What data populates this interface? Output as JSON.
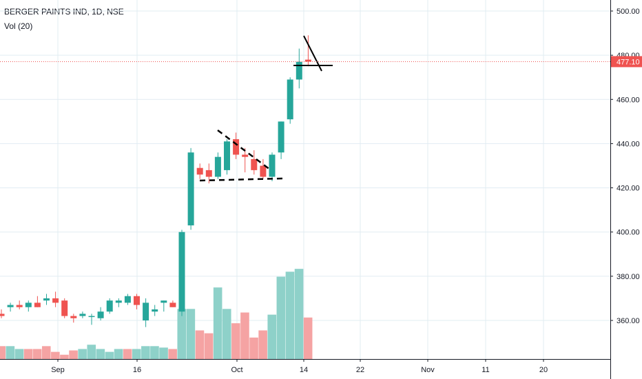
{
  "chart_data": {
    "type": "candlestick",
    "title": "BERGER PAINTS IND, 1D, NSE",
    "volume_label": "Vol (20)",
    "price_axis": {
      "ticks": [
        "500.00",
        "480.00",
        "460.00",
        "440.00",
        "420.00",
        "400.00",
        "380.00",
        "360.00"
      ],
      "ylim": [
        343,
        502
      ]
    },
    "time_axis": {
      "ticks": [
        "Sep",
        "16",
        "Oct",
        "14",
        "22",
        "Nov",
        "11",
        "20"
      ]
    },
    "last_price": {
      "label": "477.10",
      "value": 477.1
    },
    "candles": [
      {
        "o": 363,
        "h": 365,
        "l": 361,
        "c": 362
      },
      {
        "o": 366,
        "h": 368,
        "l": 364,
        "c": 367
      },
      {
        "o": 367,
        "h": 369,
        "l": 365,
        "c": 366
      },
      {
        "o": 366,
        "h": 369,
        "l": 364,
        "c": 368
      },
      {
        "o": 368,
        "h": 371,
        "l": 366,
        "c": 366
      },
      {
        "o": 369,
        "h": 372,
        "l": 367,
        "c": 370
      },
      {
        "o": 370,
        "h": 373,
        "l": 366,
        "c": 368
      },
      {
        "o": 369,
        "h": 370,
        "l": 361,
        "c": 362
      },
      {
        "o": 362,
        "h": 363,
        "l": 359,
        "c": 361
      },
      {
        "o": 362,
        "h": 364,
        "l": 361,
        "c": 363
      },
      {
        "o": 362,
        "h": 363,
        "l": 358,
        "c": 362
      },
      {
        "o": 361,
        "h": 366,
        "l": 360,
        "c": 364
      },
      {
        "o": 364,
        "h": 370,
        "l": 363,
        "c": 369
      },
      {
        "o": 368,
        "h": 370,
        "l": 366,
        "c": 369
      },
      {
        "o": 368,
        "h": 372,
        "l": 367,
        "c": 371
      },
      {
        "o": 371,
        "h": 372,
        "l": 365,
        "c": 367
      },
      {
        "o": 360,
        "h": 370,
        "l": 357,
        "c": 368
      },
      {
        "o": 364,
        "h": 367,
        "l": 362,
        "c": 365
      },
      {
        "o": 368,
        "h": 369,
        "l": 364,
        "c": 369
      },
      {
        "o": 368,
        "h": 369,
        "l": 366,
        "c": 366
      },
      {
        "o": 364,
        "h": 401,
        "l": 362,
        "c": 400
      },
      {
        "o": 403,
        "h": 438,
        "l": 401,
        "c": 436
      },
      {
        "o": 429,
        "h": 431,
        "l": 424,
        "c": 426
      },
      {
        "o": 428,
        "h": 431,
        "l": 422,
        "c": 425
      },
      {
        "o": 425,
        "h": 436,
        "l": 424,
        "c": 434
      },
      {
        "o": 428,
        "h": 442,
        "l": 426,
        "c": 441
      },
      {
        "o": 442,
        "h": 445,
        "l": 433,
        "c": 435
      },
      {
        "o": 435,
        "h": 438,
        "l": 427,
        "c": 434
      },
      {
        "o": 433,
        "h": 437,
        "l": 426,
        "c": 428
      },
      {
        "o": 430,
        "h": 433,
        "l": 424,
        "c": 425
      },
      {
        "o": 425,
        "h": 436,
        "l": 423,
        "c": 435
      },
      {
        "o": 436,
        "h": 450,
        "l": 433,
        "c": 450
      },
      {
        "o": 451,
        "h": 470,
        "l": 449,
        "c": 469
      },
      {
        "o": 469,
        "h": 483,
        "l": 465,
        "c": 477
      },
      {
        "o": 478,
        "h": 489,
        "l": 475,
        "c": 477.1
      }
    ],
    "volume": [
      {
        "v": 18,
        "up": false
      },
      {
        "v": 18,
        "up": true
      },
      {
        "v": 14,
        "up": true
      },
      {
        "v": 14,
        "up": false
      },
      {
        "v": 14,
        "up": false
      },
      {
        "v": 18,
        "up": false
      },
      {
        "v": 10,
        "up": false
      },
      {
        "v": 6,
        "up": false
      },
      {
        "v": 12,
        "up": false
      },
      {
        "v": 14,
        "up": true
      },
      {
        "v": 20,
        "up": true
      },
      {
        "v": 14,
        "up": true
      },
      {
        "v": 10,
        "up": true
      },
      {
        "v": 14,
        "up": true
      },
      {
        "v": 14,
        "up": false
      },
      {
        "v": 14,
        "up": true
      },
      {
        "v": 18,
        "up": true
      },
      {
        "v": 18,
        "up": true
      },
      {
        "v": 16,
        "up": true
      },
      {
        "v": 14,
        "up": false
      },
      {
        "v": 70,
        "up": true
      },
      {
        "v": 70,
        "up": true
      },
      {
        "v": 40,
        "up": false
      },
      {
        "v": 36,
        "up": false
      },
      {
        "v": 100,
        "up": true
      },
      {
        "v": 70,
        "up": true
      },
      {
        "v": 50,
        "up": false
      },
      {
        "v": 65,
        "up": false
      },
      {
        "v": 30,
        "up": false
      },
      {
        "v": 40,
        "up": false
      },
      {
        "v": 62,
        "up": true
      },
      {
        "v": 115,
        "up": true
      },
      {
        "v": 122,
        "up": true
      },
      {
        "v": 126,
        "up": true
      },
      {
        "v": 58,
        "up": false
      }
    ],
    "volume_ylim": [
      0,
      130
    ],
    "grid": true,
    "colors": {
      "up": "#26a69a",
      "down": "#ef5350",
      "up_volume": "#8ed1c9",
      "down_volume": "#f5a3a3",
      "grid": "#e1ecf2",
      "last_price_line": "#ef5350",
      "drawing": "#000000"
    }
  }
}
